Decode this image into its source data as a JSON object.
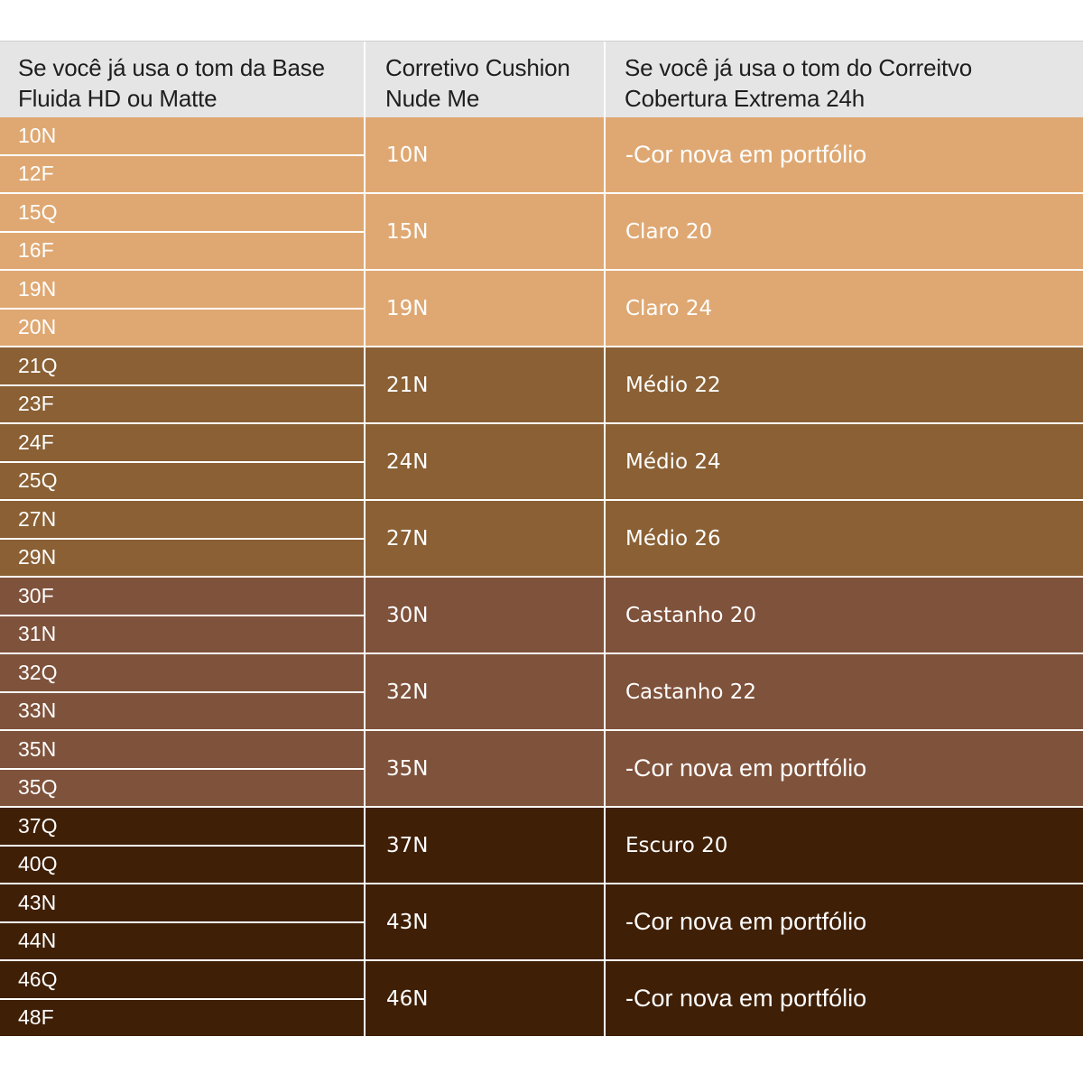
{
  "colors": {
    "light": "#dfa872",
    "medium": "#8a6034",
    "brown": "#7f523b",
    "dark": "#3f1f06",
    "header_bg": "#e5e5e5"
  },
  "header": {
    "col1": "Se você já usa o tom da Base\nFluida HD ou Matte",
    "col2": "Corretivo Cushion\nNude Me",
    "col3": "Se você já usa o tom do Correitvo\nCobertura Extrema 24h"
  },
  "rows": [
    {
      "base_top": "10N",
      "base_bottom": "12F",
      "cushion": "10N",
      "cobertura": "-Cor nova em portfólio",
      "tone": "light"
    },
    {
      "base_top": "15Q",
      "base_bottom": "16F",
      "cushion": "15N",
      "cobertura": "Claro 20",
      "tone": "light"
    },
    {
      "base_top": "19N",
      "base_bottom": "20N",
      "cushion": "19N",
      "cobertura": "Claro 24",
      "tone": "light"
    },
    {
      "base_top": "21Q",
      "base_bottom": "23F",
      "cushion": "21N",
      "cobertura": "Médio 22",
      "tone": "medium"
    },
    {
      "base_top": "24F",
      "base_bottom": "25Q",
      "cushion": "24N",
      "cobertura": "Médio 24",
      "tone": "medium"
    },
    {
      "base_top": "27N",
      "base_bottom": "29N",
      "cushion": "27N",
      "cobertura": "Médio 26",
      "tone": "medium"
    },
    {
      "base_top": "30F",
      "base_bottom": "31N",
      "cushion": "30N",
      "cobertura": "Castanho 20",
      "tone": "brown"
    },
    {
      "base_top": "32Q",
      "base_bottom": "33N",
      "cushion": "32N",
      "cobertura": "Castanho 22",
      "tone": "brown"
    },
    {
      "base_top": "35N",
      "base_bottom": "35Q",
      "cushion": "35N",
      "cobertura": "-Cor nova em portfólio",
      "tone": "brown"
    },
    {
      "base_top": "37Q",
      "base_bottom": "40Q",
      "cushion": "37N",
      "cobertura": "Escuro 20",
      "tone": "dark"
    },
    {
      "base_top": "43N",
      "base_bottom": "44N",
      "cushion": "43N",
      "cobertura": "-Cor nova em portfólio",
      "tone": "dark"
    },
    {
      "base_top": "46Q",
      "base_bottom": "48F",
      "cushion": "46N",
      "cobertura": "-Cor nova em portfólio",
      "tone": "dark"
    }
  ]
}
